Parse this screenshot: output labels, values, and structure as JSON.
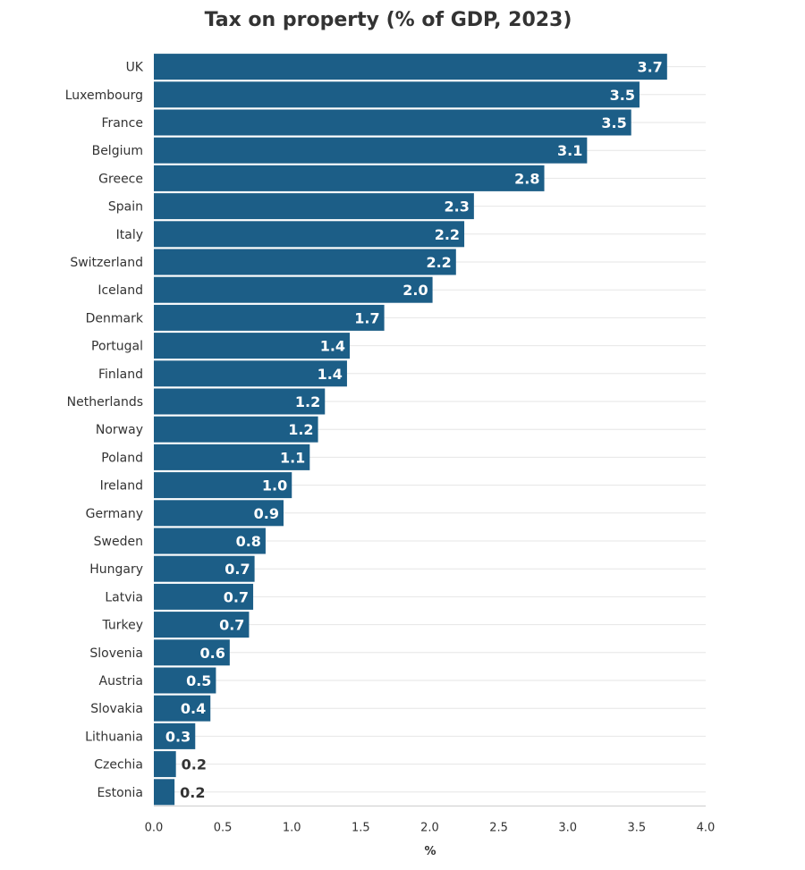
{
  "chart_data": {
    "type": "bar",
    "orientation": "horizontal",
    "title": "Tax on property (% of GDP, 2023)",
    "xlabel": "%",
    "ylabel": "",
    "xlim": [
      0,
      4
    ],
    "xticks": [
      "0.0",
      "0.5",
      "1.0",
      "1.5",
      "2.0",
      "2.5",
      "3.0",
      "3.5",
      "4.0"
    ],
    "grid": "horizontal",
    "categories": [
      "UK",
      "Luxembourg",
      "France",
      "Belgium",
      "Greece",
      "Spain",
      "Italy",
      "Switzerland",
      "Iceland",
      "Denmark",
      "Portugal",
      "Finland",
      "Netherlands",
      "Norway",
      "Poland",
      "Ireland",
      "Germany",
      "Sweden",
      "Hungary",
      "Latvia",
      "Turkey",
      "Slovenia",
      "Austria",
      "Slovakia",
      "Lithuania",
      "Czechia",
      "Estonia"
    ],
    "values": [
      3.72,
      3.52,
      3.46,
      3.14,
      2.83,
      2.32,
      2.25,
      2.19,
      2.02,
      1.67,
      1.42,
      1.4,
      1.24,
      1.19,
      1.13,
      1.0,
      0.94,
      0.81,
      0.73,
      0.72,
      0.69,
      0.55,
      0.45,
      0.41,
      0.3,
      0.16,
      0.15
    ],
    "value_labels": [
      "3.7",
      "3.5",
      "3.5",
      "3.1",
      "2.8",
      "2.3",
      "2.2",
      "2.2",
      "2.0",
      "1.7",
      "1.4",
      "1.4",
      "1.2",
      "1.2",
      "1.1",
      "1.0",
      "0.9",
      "0.8",
      "0.7",
      "0.7",
      "0.7",
      "0.6",
      "0.5",
      "0.4",
      "0.3",
      "0.2",
      "0.2"
    ],
    "colors": {
      "bar": "#1c5e87",
      "label_inside": "#ffffff",
      "label_outside": "#333333",
      "grid": "#e6e6e6"
    }
  }
}
